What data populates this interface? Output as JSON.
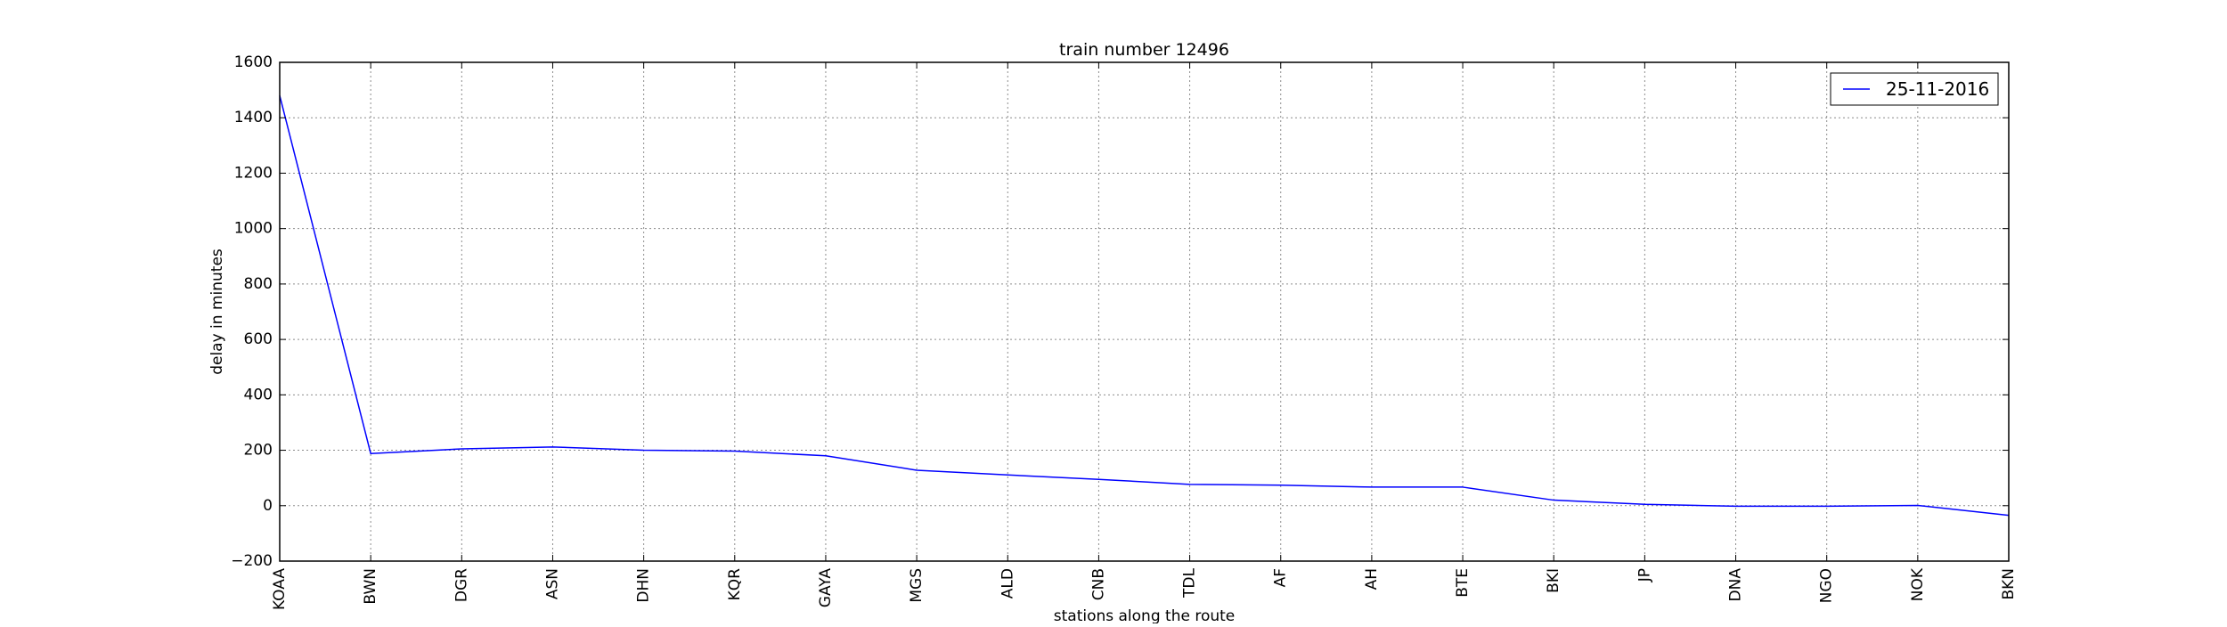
{
  "chart_data": {
    "type": "line",
    "title": "train number 12496",
    "xlabel": "stations along the route",
    "ylabel": "delay in minutes",
    "categories": [
      "KOAA",
      "BWN",
      "DGR",
      "ASN",
      "DHN",
      "KQR",
      "GAYA",
      "MGS",
      "ALD",
      "CNB",
      "TDL",
      "AF",
      "AH",
      "BTE",
      "BKI",
      "JP",
      "DNA",
      "NGO",
      "NOK",
      "BKN"
    ],
    "ylim": [
      -200,
      1600
    ],
    "yticks": [
      -200,
      0,
      200,
      400,
      600,
      800,
      1000,
      1200,
      1400,
      1600
    ],
    "yticklabels": [
      "−200",
      "0",
      "200",
      "400",
      "600",
      "800",
      "1000",
      "1200",
      "1400",
      "1600"
    ],
    "grid": true,
    "legend_position": "top-right",
    "series": [
      {
        "name": "25-11-2016",
        "color": "#0000ff",
        "values": [
          1480,
          188,
          205,
          212,
          200,
          197,
          180,
          128,
          111,
          95,
          77,
          74,
          67,
          67,
          20,
          5,
          -2,
          -2,
          1,
          -35
        ]
      }
    ]
  }
}
